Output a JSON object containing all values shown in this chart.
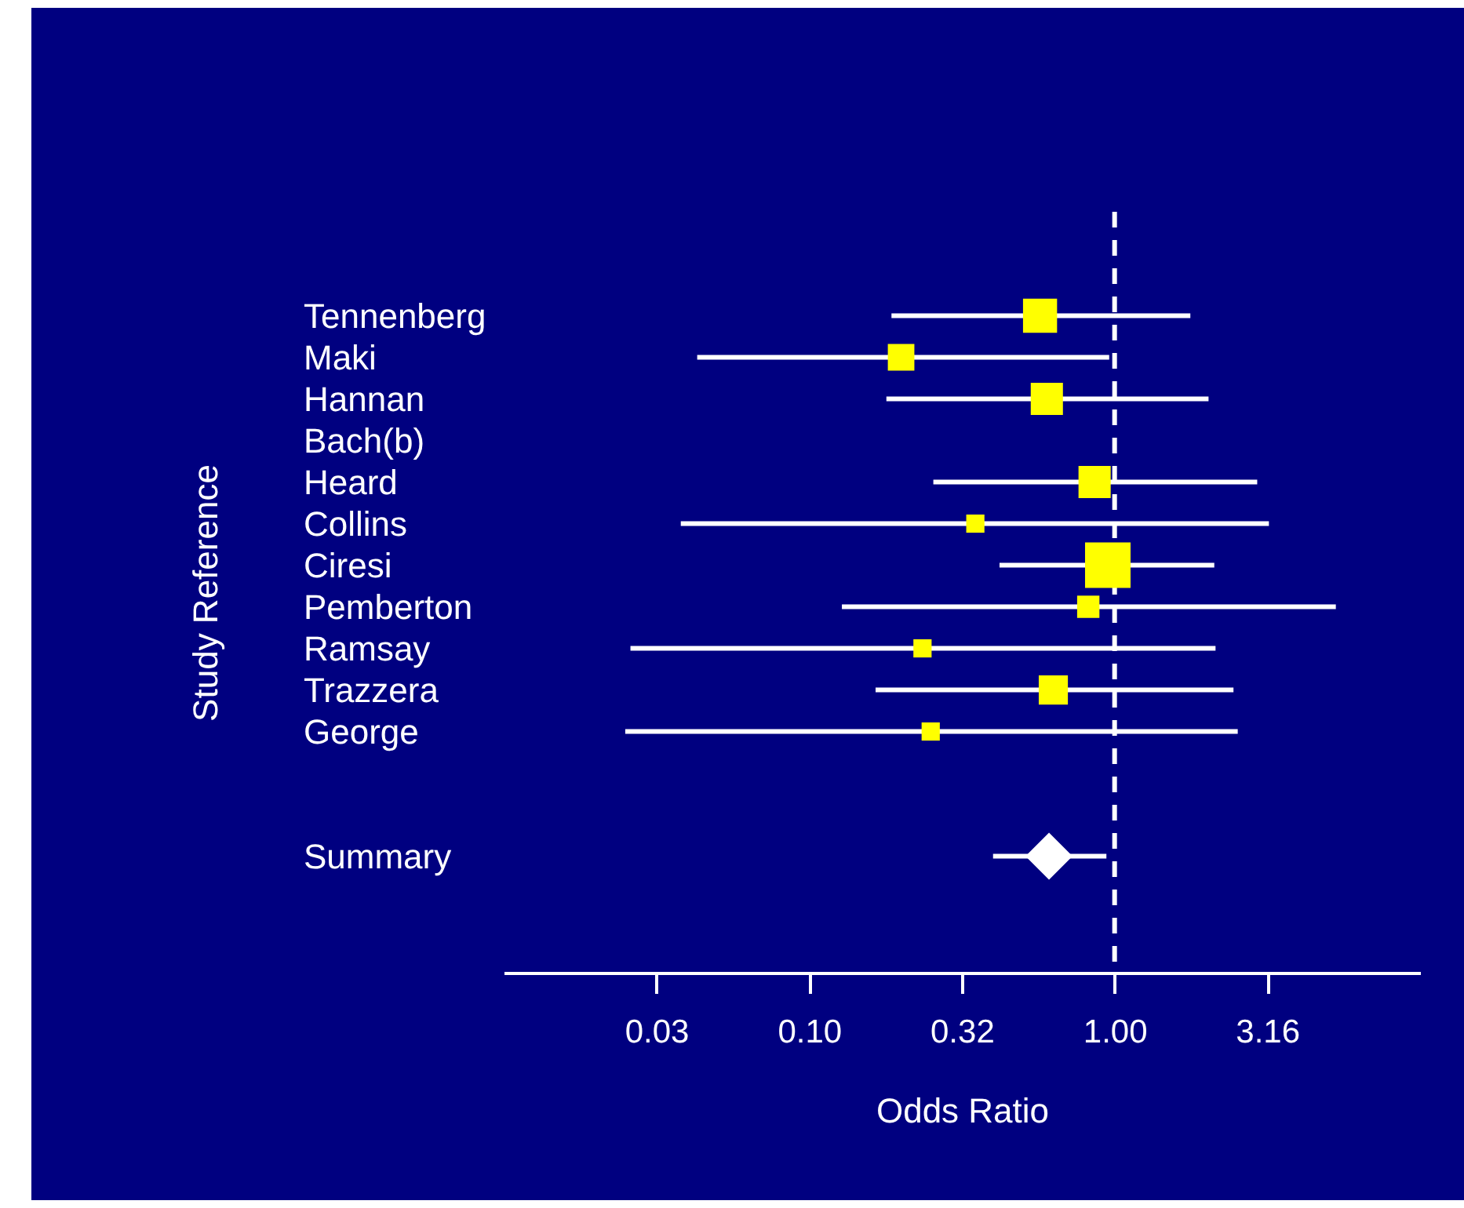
{
  "chart_data": {
    "type": "scatter",
    "orientation": "horizontal",
    "log": "x",
    "xlabel": "Odds Ratio",
    "ylabel": "Study Reference",
    "categories": [
      "Tennenberg",
      "Maki",
      "Hannan",
      "Bach(b)",
      "Heard",
      "Collins",
      "Ciresi",
      "Pemberton",
      "Ramsay",
      "Trazzera",
      "George",
      null,
      null,
      "Summary"
    ],
    "xlim": [
      0.01,
      10
    ],
    "xticks": [
      {
        "value": 0.0316,
        "label": "0.03"
      },
      {
        "value": 0.1,
        "label": "0.10"
      },
      {
        "value": 0.316,
        "label": "0.32"
      },
      {
        "value": 1,
        "label": "1.00"
      },
      3.16
    ],
    "grid": false,
    "series": [
      {
        "color": "#ffff00",
        "marker": "square",
        "values": [
          0.57,
          0.2,
          0.6,
          null,
          0.86,
          0.35,
          0.95,
          0.82,
          0.235,
          0.63,
          0.25,
          null,
          null,
          null
        ],
        "errors": [
          [
            0.186,
            1.77
          ],
          [
            0.043,
            0.96
          ],
          [
            0.179,
            2.03
          ],
          null,
          [
            0.255,
            2.93
          ],
          [
            0.038,
            3.2
          ],
          [
            0.42,
            2.12
          ],
          [
            0.128,
            5.3
          ],
          [
            0.026,
            2.14
          ],
          [
            0.165,
            2.45
          ],
          [
            0.025,
            2.53
          ],
          null,
          null,
          null
        ],
        "sizes": [
          0.56,
          0.34,
          0.5,
          null,
          0.5,
          0.16,
          1,
          0.24,
          0.16,
          0.41,
          0.16,
          null,
          null,
          null
        ]
      },
      {
        "color": "#ffffff",
        "marker": "diamond",
        "values": [
          null,
          null,
          null,
          null,
          null,
          null,
          null,
          null,
          null,
          null,
          null,
          null,
          null,
          0.61
        ],
        "errors": [
          null,
          null,
          null,
          null,
          null,
          null,
          null,
          null,
          null,
          null,
          null,
          null,
          null,
          [
            0.4,
            0.94
          ]
        ]
      }
    ],
    "ref_lines": [
      {
        "axis": "x",
        "value": 1,
        "color": "#ffffff",
        "line_style": "dashed"
      }
    ]
  }
}
